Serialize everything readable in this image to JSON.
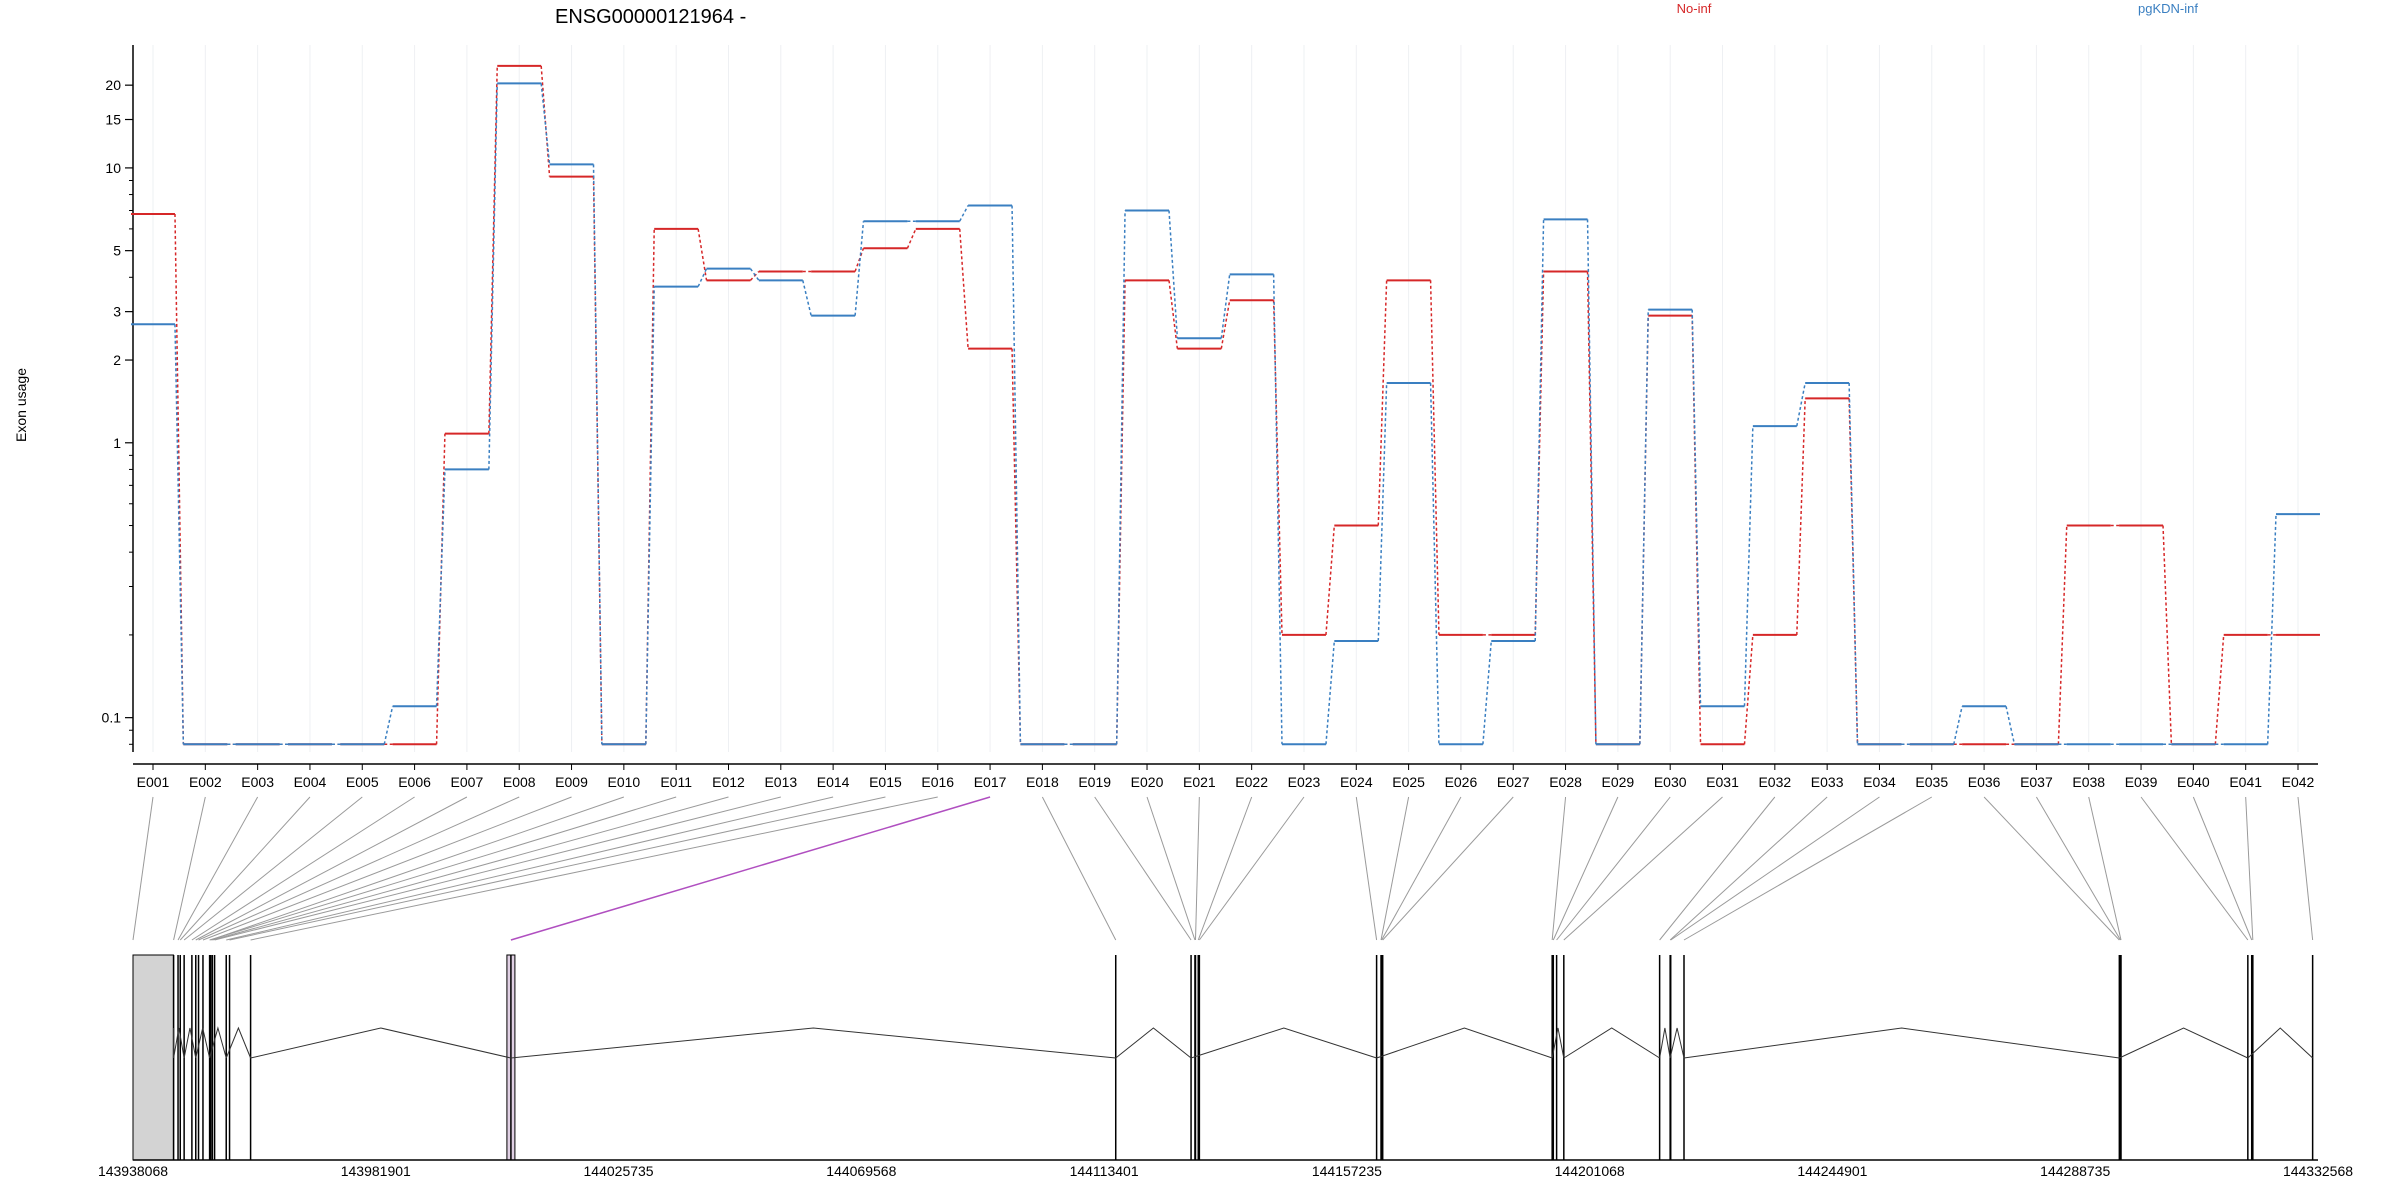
{
  "chart_data": {
    "type": "line",
    "title": "ENSG00000121964 -",
    "ylabel": "Exon usage",
    "xlabel": "",
    "y_scale": "log",
    "ylim": [
      0.075,
      28
    ],
    "y_ticks": [
      {
        "value": 0.1,
        "label": "0.1"
      },
      {
        "value": 1,
        "label": "1"
      },
      {
        "value": 2,
        "label": "2"
      },
      {
        "value": 3,
        "label": "3"
      },
      {
        "value": 5,
        "label": "5"
      },
      {
        "value": 10,
        "label": "10"
      },
      {
        "value": 15,
        "label": "15"
      },
      {
        "value": 20,
        "label": "20"
      }
    ],
    "grid": "vertical, light, at each exon",
    "legend_position": "top",
    "categories": [
      "E001",
      "E002",
      "E003",
      "E004",
      "E005",
      "E006",
      "E007",
      "E008",
      "E009",
      "E010",
      "E011",
      "E012",
      "E013",
      "E014",
      "E015",
      "E016",
      "E017",
      "E018",
      "E019",
      "E020",
      "E021",
      "E022",
      "E023",
      "E024",
      "E025",
      "E026",
      "E027",
      "E028",
      "E029",
      "E030",
      "E031",
      "E032",
      "E033",
      "E034",
      "E035",
      "E036",
      "E037",
      "E038",
      "E039",
      "E040",
      "E041",
      "E042"
    ],
    "series": [
      {
        "name": "No-inf",
        "color": "#d62728",
        "values": [
          6.8,
          0.08,
          0.08,
          0.08,
          0.08,
          0.08,
          1.08,
          23.5,
          9.3,
          0.08,
          6.0,
          3.9,
          4.2,
          4.2,
          5.1,
          6.0,
          2.2,
          0.08,
          0.08,
          3.9,
          2.2,
          3.3,
          0.2,
          0.5,
          3.9,
          0.2,
          0.2,
          4.2,
          0.08,
          2.9,
          0.08,
          0.2,
          1.45,
          0.08,
          0.08,
          0.08,
          0.08,
          0.5,
          0.5,
          0.08,
          0.2,
          0.2
        ]
      },
      {
        "name": "pgKDN-inf",
        "color": "#3a7fc1",
        "values": [
          2.7,
          0.08,
          0.08,
          0.08,
          0.08,
          0.11,
          0.8,
          20.3,
          10.3,
          0.08,
          3.7,
          4.3,
          3.9,
          2.9,
          6.4,
          6.4,
          7.3,
          0.08,
          0.08,
          7.0,
          2.4,
          4.1,
          0.08,
          0.19,
          1.65,
          0.08,
          0.19,
          6.5,
          0.08,
          3.05,
          0.11,
          1.15,
          1.65,
          0.08,
          0.08,
          0.11,
          0.08,
          0.08,
          0.08,
          0.08,
          0.08,
          0.55
        ]
      }
    ],
    "gene_model": {
      "coord_ticks": [
        "143938068",
        "143981901",
        "144025735",
        "144069568",
        "144113401",
        "144157235",
        "144201068",
        "144244901",
        "144288735",
        "144332568"
      ],
      "coord_min": 143938068,
      "coord_max": 144332568,
      "highlight_exon": "E017",
      "highlight_color": "#b04fc0",
      "exon_positions": [
        143938068,
        143945400,
        143946200,
        143946600,
        143947300,
        143948700,
        143949400,
        143949900,
        143950700,
        143952100,
        143951900,
        143952400,
        143952800,
        143954900,
        143955500,
        143959300,
        144006300,
        144115500,
        144129100,
        144129800,
        144129900,
        144130400,
        144130600,
        144162600,
        144163400,
        144163500,
        144163700,
        144194300,
        144194500,
        144195100,
        144196400,
        144213700,
        144215600,
        144215700,
        144218100,
        144296700,
        144296900,
        144297000,
        144319900,
        144320600,
        144320800,
        144331600
      ]
    }
  }
}
